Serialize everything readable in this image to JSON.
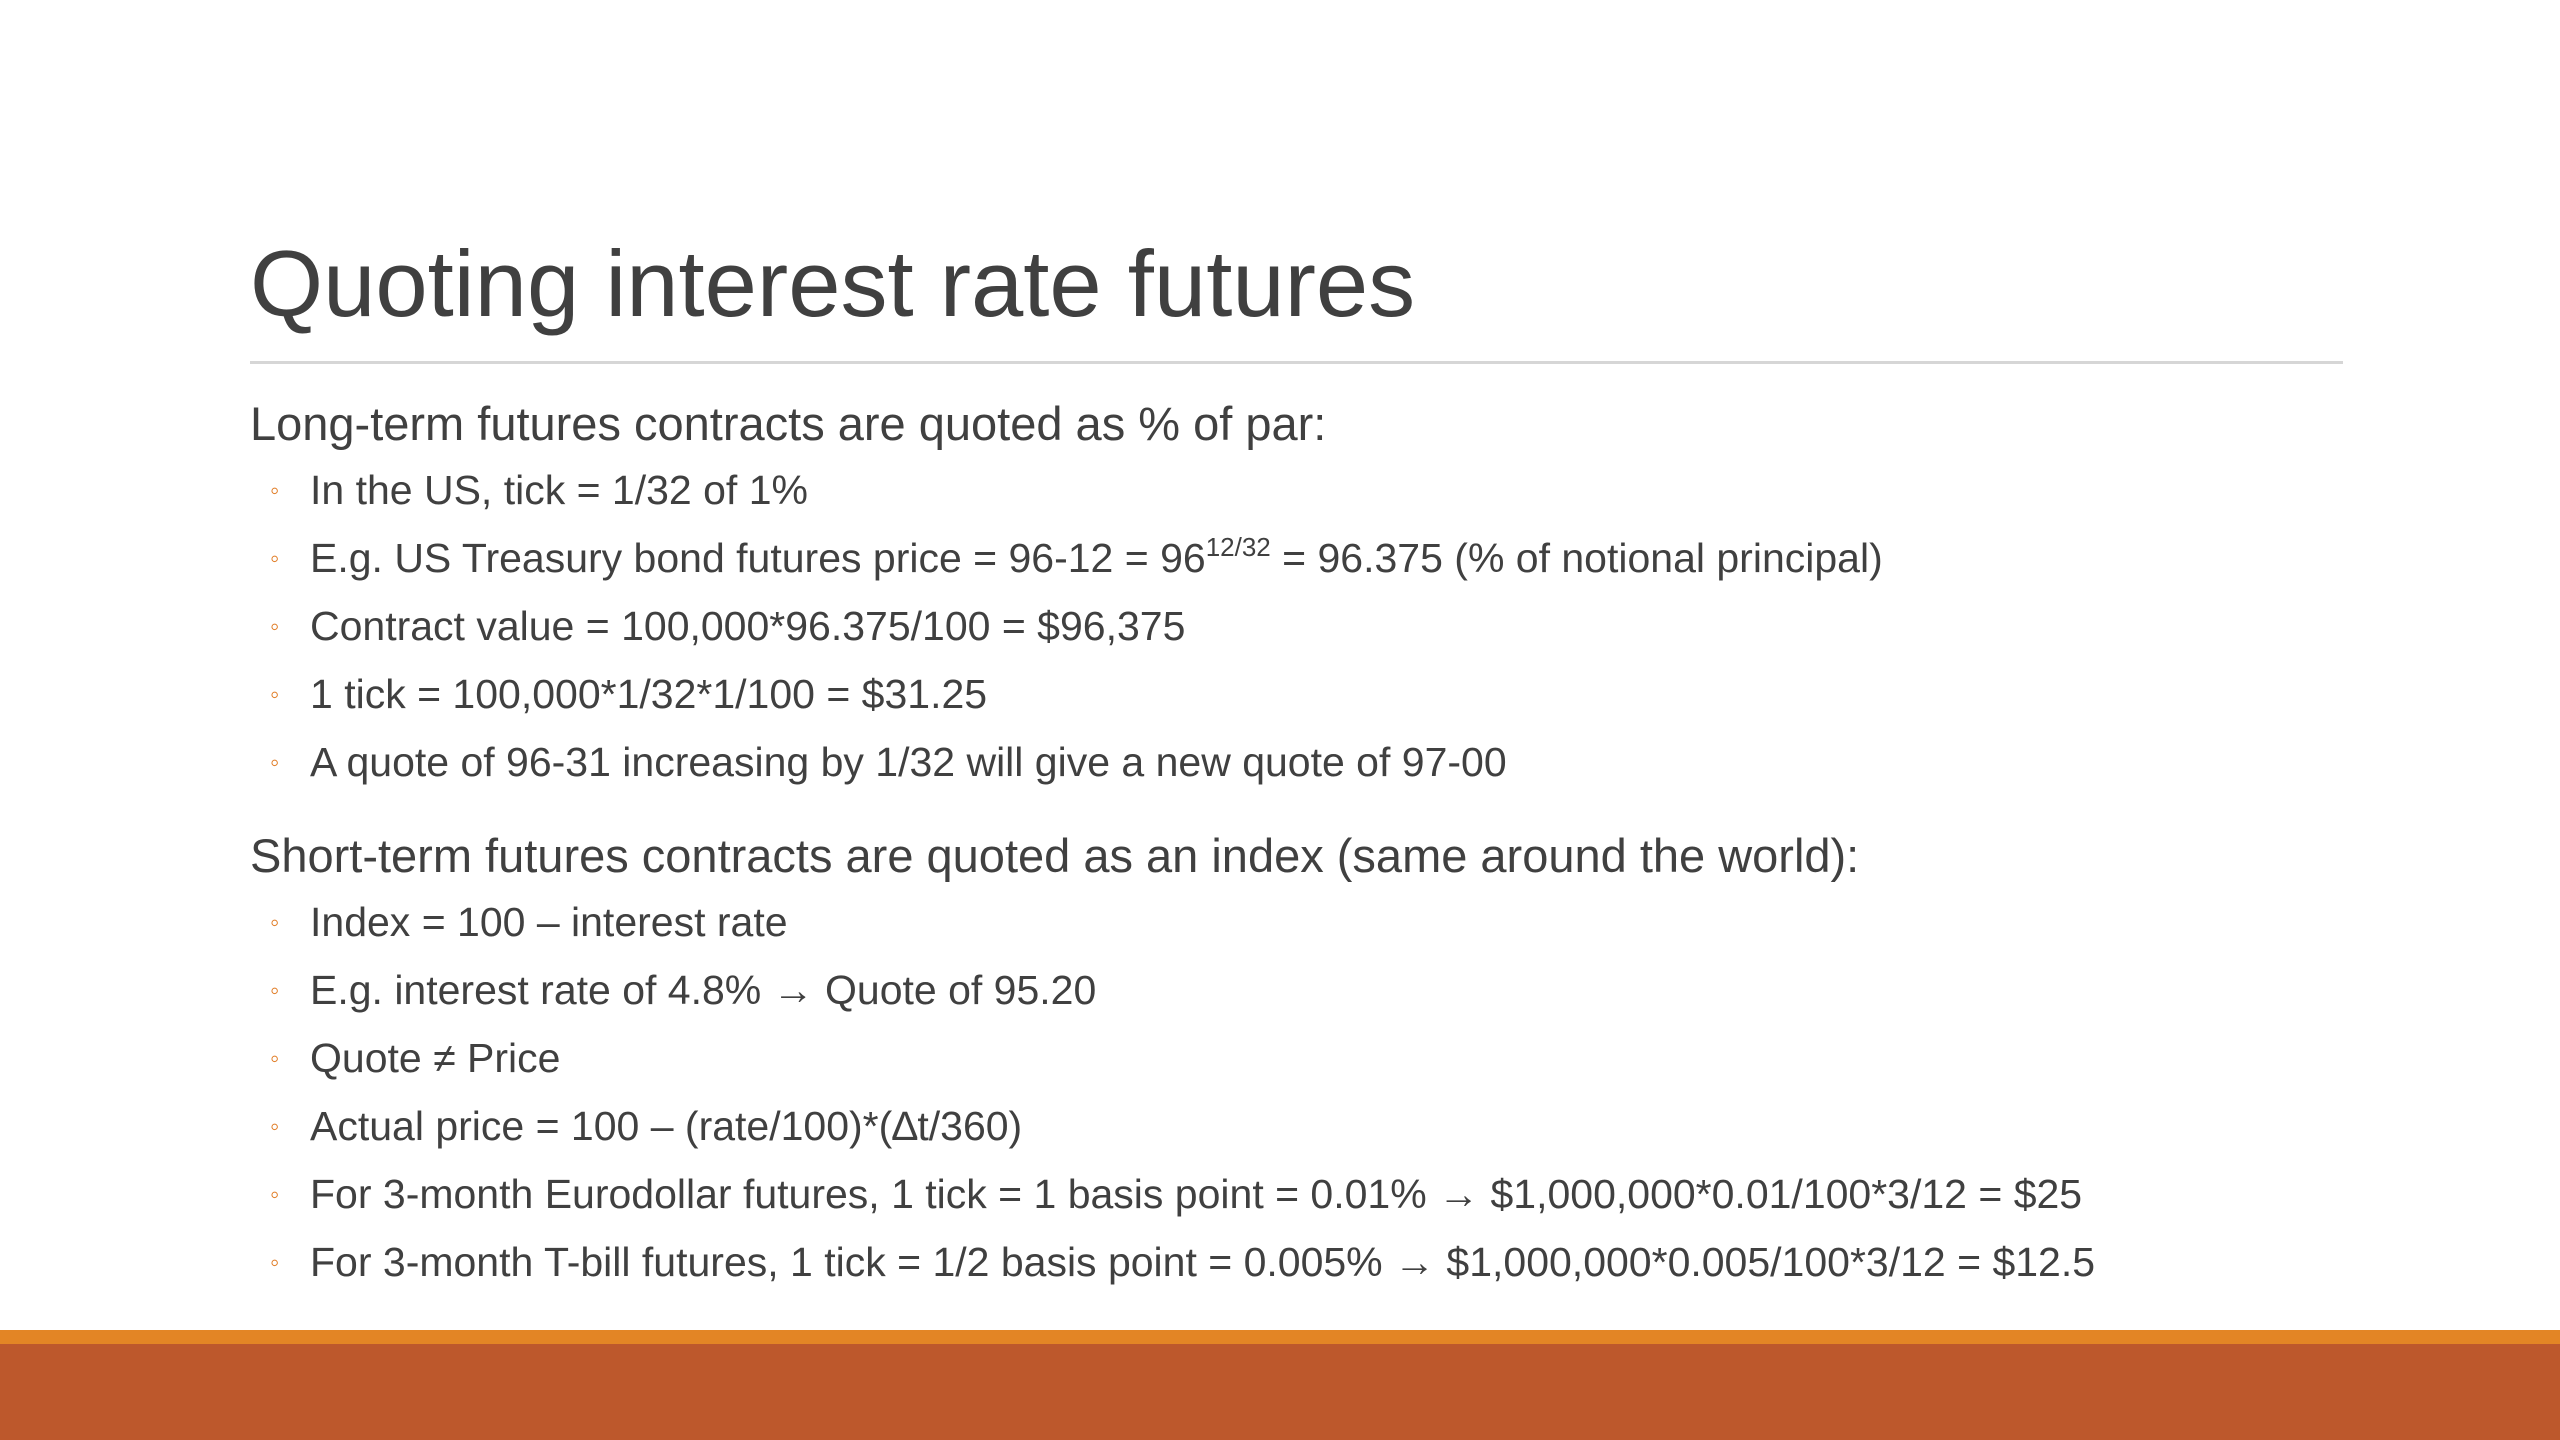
{
  "slide": {
    "title": "Quoting interest rate futures",
    "sections": [
      {
        "heading": "Long-term futures contracts are quoted as % of par:",
        "bullets": [
          "In the US, tick = 1/32 of 1%",
          {
            "before": "E.g. US Treasury bond futures price = 96-12 = 96",
            "sup": "12/32",
            "after": " = 96.375 (% of notional principal)"
          },
          "Contract value = 100,000*96.375/100 = $96,375",
          "1 tick = 100,000*1/32*1/100 = $31.25",
          "A quote of 96-31 increasing by 1/32 will give a new quote of 97-00"
        ]
      },
      {
        "heading": "Short-term futures contracts are quoted as an index (same around the world):",
        "bullets": [
          "Index = 100 – interest rate",
          "E.g. interest rate of 4.8% → Quote of 95.20",
          "Quote ≠ Price",
          "Actual price = 100 – (rate/100)*(∆t/360)",
          "For 3-month Eurodollar futures, 1 tick = 1 basis point = 0.01% → $1,000,000*0.01/100*3/12 = $25",
          "For 3-month T-bill futures, 1 tick = 1/2 basis point = 0.005% → $1,000,000*0.005/100*3/12 = $12.5"
        ]
      }
    ],
    "bullet_glyph": "◦"
  },
  "colors": {
    "text": "#404040",
    "bullet": "#e07b24",
    "footer_stripe": "#e38525",
    "footer_band": "#bd582c",
    "title_rule": "#d6d6d6"
  }
}
